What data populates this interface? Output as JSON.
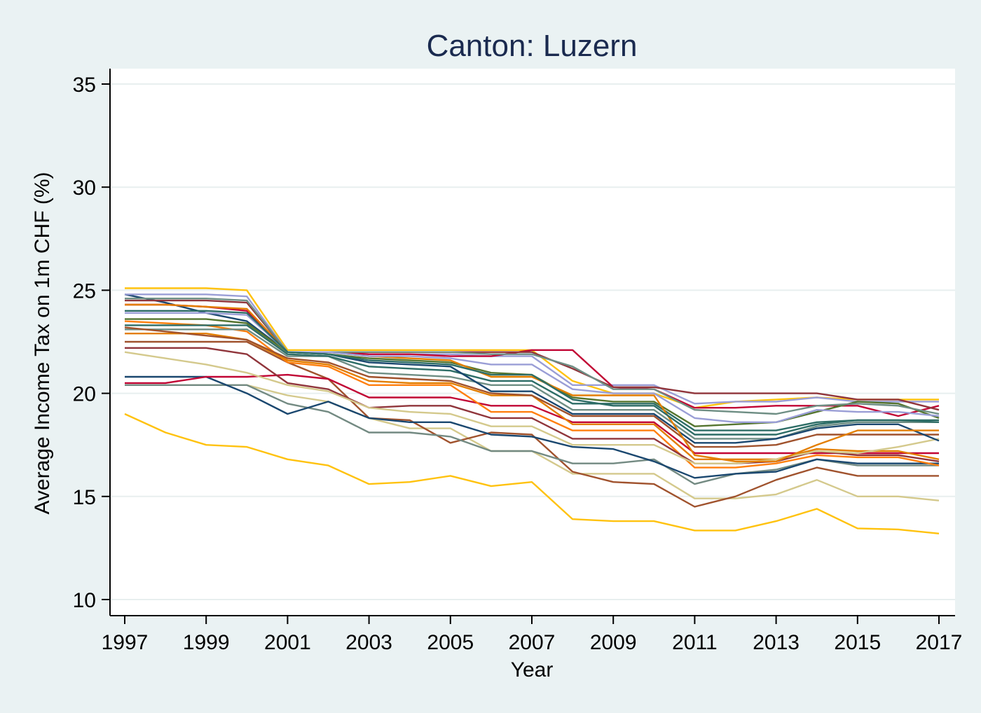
{
  "chart_data": {
    "type": "line",
    "title": "Canton: Luzern",
    "xlabel": "Year",
    "ylabel": "Average Income Tax on 1m CHF (%)",
    "xlim": [
      1997,
      2017
    ],
    "ylim": [
      10,
      35
    ],
    "x_ticks": [
      "1997",
      "1999",
      "2001",
      "2003",
      "2005",
      "2007",
      "2009",
      "2011",
      "2013",
      "2015",
      "2017"
    ],
    "y_ticks": [
      "10",
      "15",
      "20",
      "25",
      "30",
      "35"
    ],
    "grid": true,
    "legend": "none",
    "x": [
      1997,
      1998,
      1999,
      2000,
      2001,
      2002,
      2003,
      2004,
      2005,
      2006,
      2007,
      2008,
      2009,
      2010,
      2011,
      2012,
      2013,
      2014,
      2015,
      2016,
      2017
    ],
    "series": [
      {
        "color": "#ffc20e",
        "values": [
          19.0,
          18.1,
          17.5,
          17.4,
          16.8,
          16.5,
          15.6,
          15.7,
          16.0,
          15.5,
          15.7,
          13.9,
          13.8,
          13.8,
          13.35,
          13.35,
          13.8,
          14.4,
          13.45,
          13.4,
          13.2
        ]
      },
      {
        "color": "#d4c98c",
        "values": [
          20.4,
          20.4,
          20.4,
          20.4,
          19.9,
          19.6,
          18.8,
          18.3,
          18.3,
          17.2,
          17.2,
          16.1,
          16.1,
          16.1,
          14.9,
          14.9,
          15.1,
          15.8,
          15.0,
          15.0,
          14.8
        ]
      },
      {
        "color": "#a0522d",
        "values": [
          22.5,
          22.5,
          22.5,
          22.5,
          21.5,
          20.7,
          18.8,
          18.7,
          17.6,
          18.1,
          18.0,
          16.2,
          15.7,
          15.6,
          14.5,
          15.0,
          15.8,
          16.4,
          16.0,
          16.0,
          16.0
        ]
      },
      {
        "color": "#738a82",
        "values": [
          20.4,
          20.4,
          20.4,
          20.4,
          19.5,
          19.1,
          18.1,
          18.1,
          17.9,
          17.2,
          17.2,
          16.6,
          16.6,
          16.8,
          15.6,
          16.1,
          16.3,
          16.8,
          16.5,
          16.5,
          16.5
        ]
      },
      {
        "color": "#1a476f",
        "values": [
          20.8,
          20.8,
          20.8,
          20.0,
          19.0,
          19.6,
          18.8,
          18.6,
          18.6,
          18.0,
          17.9,
          17.4,
          17.3,
          16.7,
          15.9,
          16.1,
          16.2,
          16.8,
          16.6,
          16.6,
          16.6
        ]
      },
      {
        "color": "#c10534",
        "values": [
          20.5,
          20.5,
          20.8,
          20.8,
          20.9,
          20.7,
          19.8,
          19.8,
          19.8,
          19.4,
          19.4,
          18.6,
          18.6,
          18.6,
          17.1,
          17.1,
          17.1,
          17.1,
          17.1,
          17.1,
          17.1
        ]
      },
      {
        "color": "#ff7f0e",
        "values": [
          23.5,
          23.4,
          23.3,
          23.0,
          21.5,
          21.3,
          20.4,
          20.4,
          20.4,
          19.1,
          19.1,
          18.2,
          18.2,
          18.2,
          16.4,
          16.4,
          16.6,
          17.0,
          16.9,
          16.9,
          16.5
        ]
      },
      {
        "color": "#90353b",
        "values": [
          22.2,
          22.2,
          22.2,
          21.9,
          20.5,
          20.2,
          19.3,
          19.4,
          19.4,
          18.8,
          18.8,
          17.8,
          17.8,
          17.8,
          16.6,
          16.6,
          16.7,
          17.2,
          17.0,
          17.0,
          16.7
        ]
      },
      {
        "color": "#e37e00",
        "values": [
          22.9,
          22.9,
          22.9,
          22.6,
          21.6,
          21.4,
          20.6,
          20.5,
          20.5,
          19.9,
          19.9,
          18.5,
          18.5,
          18.5,
          16.8,
          16.8,
          16.8,
          17.3,
          17.2,
          17.2,
          16.8
        ]
      },
      {
        "color": "#d4c98c",
        "values": [
          22.0,
          21.7,
          21.4,
          21.0,
          20.4,
          20.1,
          19.3,
          19.1,
          19.0,
          18.4,
          18.4,
          17.5,
          17.5,
          17.5,
          16.6,
          16.6,
          16.8,
          17.2,
          17.1,
          17.4,
          17.8
        ]
      },
      {
        "color": "#6e8e84",
        "values": [
          23.1,
          23.1,
          23.1,
          23.1,
          21.8,
          21.8,
          21.0,
          20.9,
          20.8,
          20.4,
          20.4,
          19.2,
          19.2,
          19.2,
          17.8,
          17.8,
          17.8,
          18.4,
          18.6,
          18.6,
          18.6
        ]
      },
      {
        "color": "#a0522d",
        "values": [
          23.2,
          23.0,
          22.8,
          22.6,
          21.7,
          21.5,
          20.8,
          20.7,
          20.6,
          20.0,
          19.9,
          18.9,
          18.9,
          18.9,
          17.4,
          17.4,
          17.5,
          18.0,
          18.0,
          18.0,
          18.0
        ]
      },
      {
        "color": "#2d6d66",
        "values": [
          23.3,
          23.3,
          23.3,
          23.3,
          21.9,
          21.8,
          21.3,
          21.2,
          21.1,
          20.6,
          20.6,
          19.5,
          19.5,
          19.5,
          18.2,
          18.2,
          18.2,
          18.6,
          18.7,
          18.7,
          18.7
        ]
      },
      {
        "color": "#1a476f",
        "values": [
          24.8,
          24.4,
          23.9,
          23.5,
          22.0,
          21.9,
          21.5,
          21.4,
          21.3,
          20.1,
          20.1,
          19.0,
          19.0,
          19.0,
          17.6,
          17.6,
          17.8,
          18.3,
          18.5,
          18.5,
          17.7
        ]
      },
      {
        "color": "#ffc20e",
        "values": [
          25.1,
          25.1,
          25.1,
          25.0,
          22.1,
          22.1,
          22.1,
          22.1,
          22.1,
          22.1,
          22.1,
          20.6,
          20.0,
          20.0,
          19.3,
          19.6,
          19.7,
          19.8,
          19.7,
          19.7,
          19.7
        ]
      },
      {
        "color": "#9a9ed6",
        "values": [
          24.8,
          24.8,
          24.8,
          24.7,
          22.0,
          22.0,
          21.9,
          21.9,
          21.9,
          21.8,
          21.8,
          20.4,
          20.4,
          20.4,
          19.5,
          19.6,
          19.6,
          19.8,
          19.6,
          19.6,
          19.6
        ]
      },
      {
        "color": "#c10534",
        "values": [
          24.3,
          24.3,
          24.2,
          24.0,
          22.0,
          22.0,
          21.9,
          21.9,
          21.8,
          21.8,
          22.1,
          22.1,
          20.3,
          20.2,
          19.3,
          19.3,
          19.4,
          19.4,
          19.4,
          18.9,
          19.4
        ]
      },
      {
        "color": "#55752f",
        "values": [
          23.6,
          23.6,
          23.6,
          23.4,
          22.0,
          21.9,
          21.7,
          21.6,
          21.5,
          21.0,
          20.9,
          19.8,
          19.6,
          19.6,
          18.4,
          18.5,
          18.6,
          19.1,
          19.6,
          19.5,
          18.8
        ]
      },
      {
        "color": "#e37e00",
        "values": [
          24.3,
          24.3,
          24.2,
          24.1,
          22.0,
          22.0,
          21.8,
          21.7,
          21.6,
          20.8,
          20.8,
          19.9,
          19.9,
          19.9,
          17.0,
          16.7,
          16.7,
          17.5,
          18.2,
          18.2,
          18.2
        ]
      },
      {
        "color": "#90353b",
        "values": [
          24.5,
          24.5,
          24.5,
          24.4,
          22.0,
          22.0,
          22.0,
          22.0,
          22.0,
          22.0,
          22.0,
          21.2,
          20.3,
          20.3,
          20.0,
          20.0,
          20.0,
          20.0,
          19.7,
          19.7,
          19.2
        ]
      },
      {
        "color": "#6e8e84",
        "values": [
          24.6,
          24.6,
          24.6,
          24.5,
          22.0,
          22.0,
          22.0,
          22.0,
          22.0,
          21.9,
          21.9,
          21.3,
          20.2,
          20.2,
          19.2,
          19.1,
          19.0,
          19.4,
          19.5,
          19.4,
          19.0
        ]
      },
      {
        "color": "#9a9ed6",
        "values": [
          23.9,
          23.9,
          23.9,
          23.8,
          22.0,
          22.0,
          21.8,
          21.8,
          21.7,
          21.4,
          21.4,
          20.2,
          20.0,
          20.0,
          18.8,
          18.6,
          18.6,
          19.2,
          19.1,
          19.1,
          18.9
        ]
      },
      {
        "color": "#2d6d66",
        "values": [
          24.0,
          24.0,
          24.0,
          23.9,
          22.0,
          21.9,
          21.6,
          21.5,
          21.4,
          20.9,
          20.9,
          19.7,
          19.4,
          19.4,
          18.0,
          18.0,
          18.0,
          18.5,
          18.7,
          18.7,
          18.6
        ]
      }
    ]
  }
}
